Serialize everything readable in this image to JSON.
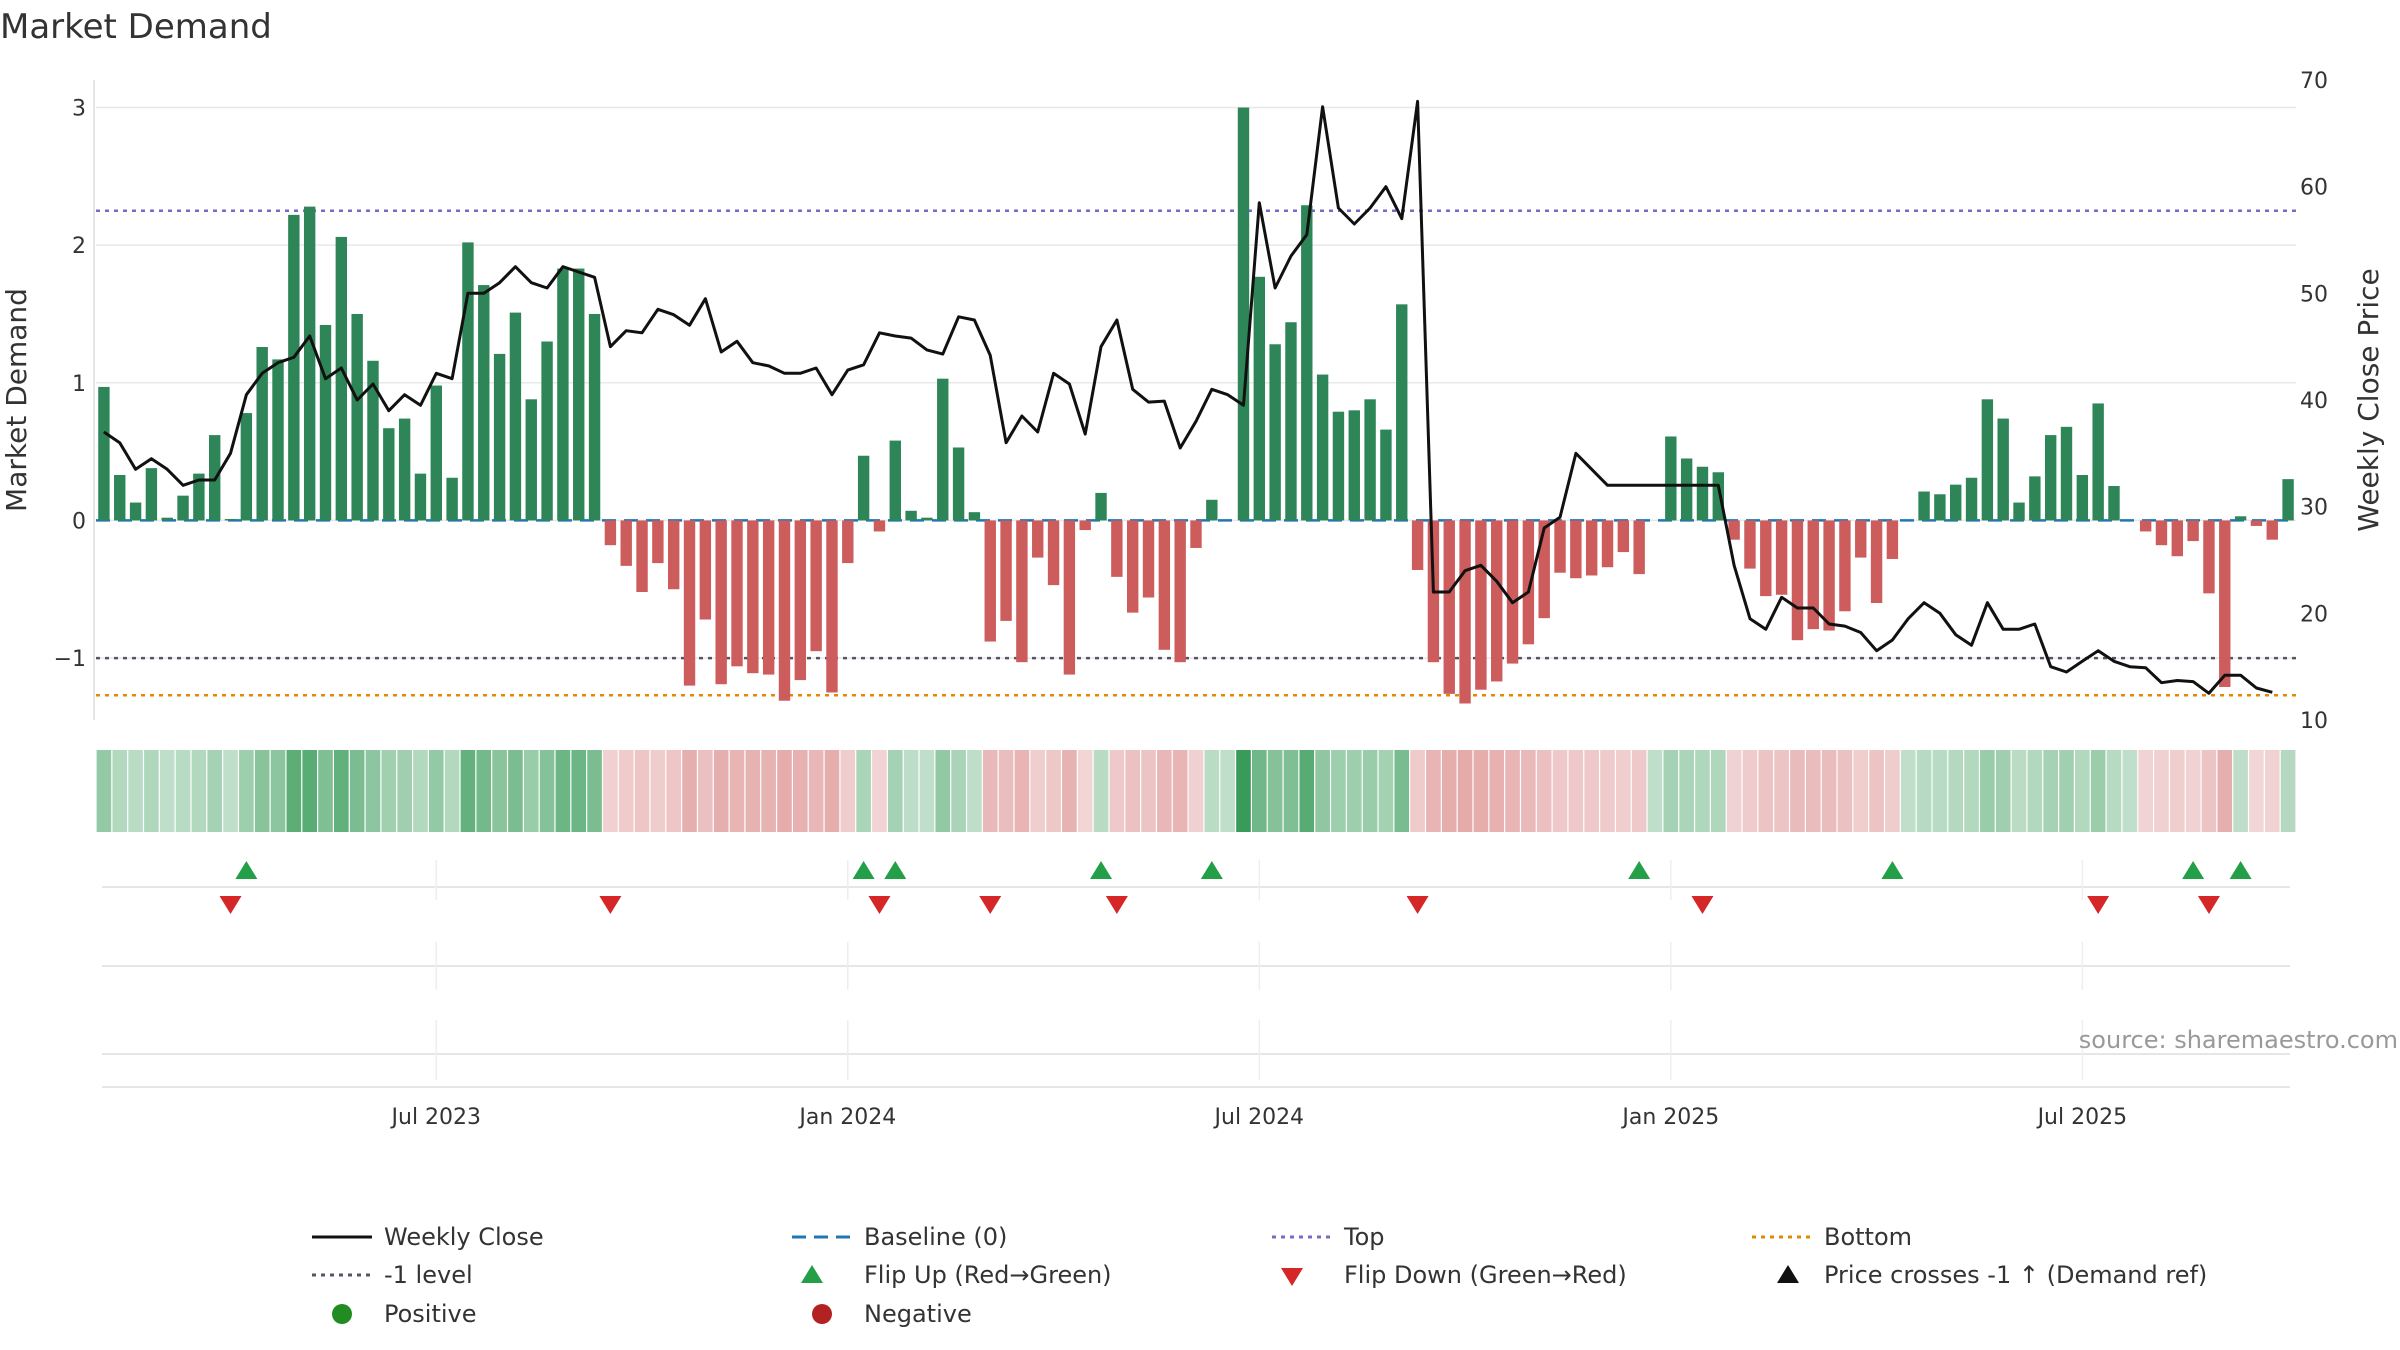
{
  "colors": {
    "positive_bar": "#2e8557",
    "negative_bar": "#cd5c5c",
    "price_line": "#111111",
    "baseline": "#1f77b4",
    "top_line": "#7b68c8",
    "minus1_line": "#555566",
    "bottom_line": "#e08a00",
    "flip_up": "#23a047",
    "flip_down": "#d62728",
    "grid": "#e8e8e8",
    "source_text": "#999999"
  },
  "chart_data": {
    "type": "bar+line",
    "title": "Market Demand",
    "ylabel_left": "Market Demand",
    "ylabel_right": "Weekly Close Price",
    "source": "source: sharemaestro.com",
    "ylim_left": [
      -1.45,
      3.2
    ],
    "ylim_right": [
      10,
      70
    ],
    "yticks_left": [
      3,
      2,
      1,
      0,
      -1
    ],
    "ytick_labels_left": [
      "3",
      "2",
      "1",
      "0",
      "−1"
    ],
    "yticks_right": [
      70,
      60,
      50,
      40,
      30,
      20,
      10
    ],
    "x_axis_labels": [
      "Jul 2023",
      "Jan 2024",
      "Jul 2024",
      "Jan 2025",
      "Jul 2025"
    ],
    "x_axis_label_week_index": [
      21,
      47,
      73,
      99,
      125
    ],
    "reference_lines": {
      "top": 2.25,
      "minus_one": -1.0,
      "bottom": -1.27,
      "baseline": 0
    },
    "demand": [
      0.97,
      0.33,
      0.13,
      0.38,
      0.02,
      0.18,
      0.34,
      0.62,
      0.01,
      0.78,
      1.26,
      1.17,
      2.22,
      2.28,
      1.42,
      2.06,
      1.5,
      1.16,
      0.67,
      0.74,
      0.34,
      0.98,
      0.31,
      2.02,
      1.71,
      1.21,
      1.51,
      0.88,
      1.3,
      1.83,
      1.83,
      1.5,
      -0.18,
      -0.33,
      -0.52,
      -0.31,
      -0.5,
      -1.2,
      -0.72,
      -1.19,
      -1.06,
      -1.11,
      -1.12,
      -1.31,
      -1.16,
      -0.95,
      -1.25,
      -0.31,
      0.47,
      -0.08,
      0.58,
      0.07,
      0.02,
      1.03,
      0.53,
      0.06,
      -0.88,
      -0.73,
      -1.03,
      -0.27,
      -0.47,
      -1.12,
      -0.07,
      0.2,
      -0.41,
      -0.67,
      -0.56,
      -0.94,
      -1.03,
      -0.2,
      0.15,
      0.0,
      3.0,
      1.77,
      1.28,
      1.44,
      2.29,
      1.06,
      0.79,
      0.8,
      0.88,
      0.66,
      1.57,
      -0.36,
      -1.03,
      -1.26,
      -1.33,
      -1.23,
      -1.17,
      -1.04,
      -0.9,
      -0.71,
      -0.38,
      -0.42,
      -0.4,
      -0.34,
      -0.23,
      -0.39,
      0.0,
      0.61,
      0.45,
      0.39,
      0.35,
      -0.14,
      -0.35,
      -0.55,
      -0.54,
      -0.87,
      -0.79,
      -0.8,
      -0.66,
      -0.27,
      -0.6,
      -0.28,
      0.0,
      0.21,
      0.19,
      0.26,
      0.31,
      0.88,
      0.74,
      0.13,
      0.32,
      0.62,
      0.68,
      0.33,
      0.85,
      0.25,
      0.0,
      -0.08,
      -0.18,
      -0.26,
      -0.15,
      -0.53,
      -1.21,
      0.03,
      -0.04,
      -0.14,
      0.3
    ],
    "weekly_close": [
      37.0,
      36.0,
      33.5,
      34.5,
      33.5,
      32.0,
      32.5,
      32.5,
      35.0,
      40.5,
      42.5,
      43.5,
      44.0,
      46.0,
      42.0,
      43.0,
      40.0,
      41.5,
      39.0,
      40.5,
      39.5,
      42.5,
      42.0,
      50.0,
      50.0,
      51.0,
      52.5,
      51.0,
      50.5,
      52.5,
      52.0,
      51.5,
      45.0,
      46.5,
      46.3,
      48.5,
      48.0,
      47.0,
      49.5,
      44.5,
      45.5,
      43.5,
      43.2,
      42.5,
      42.5,
      43.0,
      40.5,
      42.8,
      43.3,
      46.3,
      46.0,
      45.8,
      44.7,
      44.3,
      47.8,
      47.5,
      44.2,
      36.0,
      38.5,
      37.0,
      42.5,
      41.5,
      36.8,
      45.0,
      47.5,
      41.0,
      39.8,
      39.9,
      35.5,
      38.0,
      41.0,
      40.5,
      39.5,
      58.5,
      50.5,
      53.5,
      55.5,
      67.5,
      58.0,
      56.5,
      58.0,
      60.0,
      57.0,
      68.0,
      22.0,
      22.0,
      24.0,
      24.5,
      23.0,
      21.0,
      22.0,
      28.0,
      29.0,
      35.0,
      33.5,
      32.0,
      32.0,
      32.0,
      32.0,
      32.0,
      32.0,
      32.0,
      32.0,
      24.5,
      19.5,
      18.5,
      21.5,
      20.5,
      20.5,
      19.0,
      18.8,
      18.2,
      16.5,
      17.5,
      19.5,
      21.0,
      20.0,
      18.0,
      17.0,
      21.0,
      18.5,
      18.5,
      19.0,
      15.0,
      14.5,
      15.5,
      16.5,
      15.5,
      15.0,
      14.9,
      13.5,
      13.7,
      13.6,
      12.5,
      14.2,
      14.2,
      13.0,
      12.6
    ],
    "flip_up_week_index": [
      9,
      48,
      50,
      63,
      70,
      97,
      113,
      132,
      135
    ],
    "flip_down_week_index": [
      8,
      32,
      49,
      56,
      64,
      83,
      101,
      126,
      133
    ]
  },
  "legend": {
    "items": [
      {
        "label": "Weekly Close",
        "symbol": "solid-line"
      },
      {
        "label": "Baseline (0)",
        "symbol": "dashed-line"
      },
      {
        "label": "Top",
        "symbol": "dotted-line"
      },
      {
        "label": "Bottom",
        "symbol": "dotted-line"
      },
      {
        "label": "-1 level",
        "symbol": "dotted-line"
      },
      {
        "label": "Flip Up (Red→Green)",
        "symbol": "triangle-up"
      },
      {
        "label": "Flip Down (Green→Red)",
        "symbol": "triangle-down"
      },
      {
        "label": "Price crosses -1 ↑ (Demand ref)",
        "symbol": "triangle-up"
      },
      {
        "label": "Positive",
        "symbol": "circle"
      },
      {
        "label": "Negative",
        "symbol": "circle"
      }
    ]
  }
}
